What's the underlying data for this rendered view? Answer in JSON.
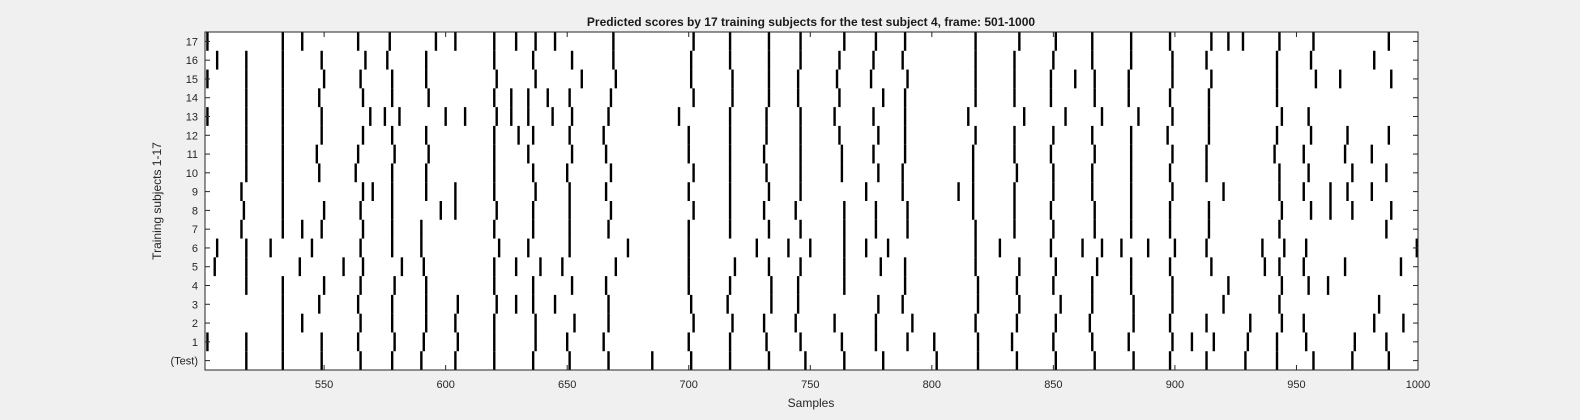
{
  "chart_data": {
    "type": "raster",
    "title": "Predicted scores by 17 training subjects for the test subject 4, frame: 501-1000",
    "xlabel": "Samples",
    "ylabel": "Training subjects 1-17",
    "xlim": [
      501,
      1000
    ],
    "xticks": [
      550,
      600,
      650,
      700,
      750,
      800,
      850,
      900,
      950,
      1000
    ],
    "yticks": [
      "(Test)",
      "1",
      "2",
      "3",
      "4",
      "5",
      "6",
      "7",
      "8",
      "9",
      "10",
      "11",
      "12",
      "13",
      "14",
      "15",
      "16",
      "17"
    ],
    "grid": false,
    "legend": "none",
    "colors": {
      "figure_bg": "#f0f0f0",
      "plot_bg": "#ffffff",
      "event": "#000000",
      "text": "#262626"
    },
    "rows": [
      {
        "label": "(Test)",
        "events": [
          518,
          533,
          549,
          565,
          578,
          590,
          604,
          620,
          636,
          651,
          667,
          685,
          701,
          717,
          733,
          748,
          764,
          780,
          802,
          819,
          835,
          851,
          867,
          883,
          898,
          913,
          929,
          942,
          957,
          973,
          988
        ]
      },
      {
        "label": "1",
        "events": [
          502,
          518,
          533,
          549,
          564,
          579,
          591,
          605,
          620,
          637,
          650,
          665,
          700,
          717,
          732,
          746,
          763,
          777,
          790,
          801,
          819,
          833,
          850,
          866,
          881,
          899,
          907,
          916,
          930,
          942,
          954,
          974,
          987
        ]
      },
      {
        "label": "2",
        "events": [
          533,
          541,
          565,
          578,
          592,
          604,
          620,
          637,
          653,
          667,
          702,
          718,
          731,
          744,
          760,
          777,
          792,
          818,
          835,
          851,
          865,
          883,
          898,
          913,
          931,
          944,
          953,
          982,
          994
        ]
      },
      {
        "label": "3",
        "events": [
          533,
          548,
          564,
          578,
          592,
          605,
          621,
          629,
          636,
          645,
          667,
          701,
          716,
          734,
          745,
          778,
          788,
          819,
          836,
          853,
          866,
          883,
          899,
          920,
          943,
          984
        ]
      },
      {
        "label": "4",
        "events": [
          518,
          533,
          550,
          565,
          579,
          592,
          620,
          636,
          652,
          666,
          700,
          717,
          734,
          745,
          764,
          789,
          819,
          835,
          850,
          866,
          882,
          899,
          922,
          944,
          955,
          963
        ]
      },
      {
        "label": "5",
        "events": [
          505,
          518,
          540,
          558,
          566,
          582,
          591,
          620,
          629,
          639,
          648,
          670,
          700,
          719,
          733,
          746,
          764,
          779,
          789,
          818,
          836,
          851,
          868,
          882,
          898,
          915,
          937,
          943,
          953,
          970,
          993
        ]
      },
      {
        "label": "6",
        "events": [
          506,
          518,
          528,
          545,
          565,
          578,
          590,
          622,
          634,
          651,
          675,
          700,
          728,
          741,
          750,
          764,
          773,
          782,
          818,
          828,
          849,
          862,
          870,
          878,
          889,
          900,
          913,
          936,
          945,
          954,
          1000
        ]
      },
      {
        "label": "7",
        "events": [
          516,
          533,
          541,
          549,
          566,
          578,
          590,
          620,
          636,
          651,
          667,
          700,
          717,
          733,
          746,
          764,
          777,
          790,
          818,
          834,
          850,
          867,
          882,
          898,
          914,
          943,
          987
        ]
      },
      {
        "label": "8",
        "events": [
          517,
          533,
          550,
          565,
          578,
          598,
          604,
          621,
          636,
          651,
          668,
          702,
          717,
          731,
          744,
          764,
          777,
          790,
          817,
          834,
          849,
          867,
          882,
          898,
          914,
          944,
          956,
          964,
          973,
          989
        ]
      },
      {
        "label": "9",
        "events": [
          516,
          533,
          566,
          570,
          578,
          592,
          604,
          620,
          637,
          651,
          666,
          700,
          717,
          733,
          746,
          773,
          788,
          811,
          817,
          834,
          850,
          866,
          882,
          899,
          920,
          943,
          953,
          964,
          971,
          981
        ]
      },
      {
        "label": "10",
        "events": [
          518,
          533,
          548,
          563,
          578,
          592,
          620,
          636,
          650,
          668,
          702,
          717,
          732,
          746,
          763,
          778,
          788,
          817,
          835,
          850,
          866,
          882,
          898,
          913,
          943,
          955,
          973,
          987
        ]
      },
      {
        "label": "11",
        "events": [
          518,
          533,
          547,
          564,
          579,
          593,
          620,
          634,
          652,
          666,
          700,
          717,
          731,
          746,
          763,
          776,
          789,
          817,
          834,
          849,
          867,
          882,
          899,
          913,
          941,
          953,
          970,
          981
        ]
      },
      {
        "label": "12",
        "events": [
          518,
          533,
          549,
          566,
          578,
          592,
          620,
          630,
          636,
          651,
          665,
          700,
          717,
          732,
          746,
          762,
          778,
          789,
          818,
          834,
          850,
          866,
          882,
          897,
          914,
          942,
          956,
          971,
          988
        ]
      },
      {
        "label": "13",
        "events": [
          502,
          518,
          533,
          549,
          569,
          575,
          581,
          600,
          608,
          621,
          627,
          634,
          644,
          652,
          667,
          696,
          717,
          732,
          746,
          760,
          776,
          789,
          815,
          838,
          855,
          870,
          885,
          899,
          914,
          944,
          955
        ]
      },
      {
        "label": "14",
        "events": [
          518,
          533,
          548,
          566,
          578,
          593,
          620,
          627,
          634,
          642,
          651,
          668,
          702,
          718,
          733,
          745,
          762,
          780,
          789,
          818,
          834,
          849,
          867,
          881,
          898,
          914,
          942
        ]
      },
      {
        "label": "15",
        "events": [
          502,
          518,
          533,
          550,
          565,
          578,
          592,
          621,
          637,
          656,
          670,
          701,
          718,
          733,
          745,
          761,
          775,
          790,
          818,
          834,
          849,
          859,
          867,
          881,
          899,
          915,
          942,
          958,
          968,
          989
        ]
      },
      {
        "label": "16",
        "events": [
          506,
          518,
          533,
          549,
          567,
          576,
          592,
          620,
          636,
          652,
          669,
          701,
          717,
          733,
          746,
          762,
          776,
          788,
          818,
          834,
          850,
          866,
          882,
          899,
          913,
          942,
          956,
          982
        ]
      },
      {
        "label": "17",
        "events": [
          502,
          533,
          541,
          564,
          577,
          596,
          604,
          620,
          629,
          637,
          645,
          669,
          702,
          717,
          733,
          746,
          764,
          777,
          789,
          818,
          836,
          851,
          866,
          882,
          898,
          915,
          922,
          928,
          943,
          957,
          988
        ]
      }
    ]
  }
}
